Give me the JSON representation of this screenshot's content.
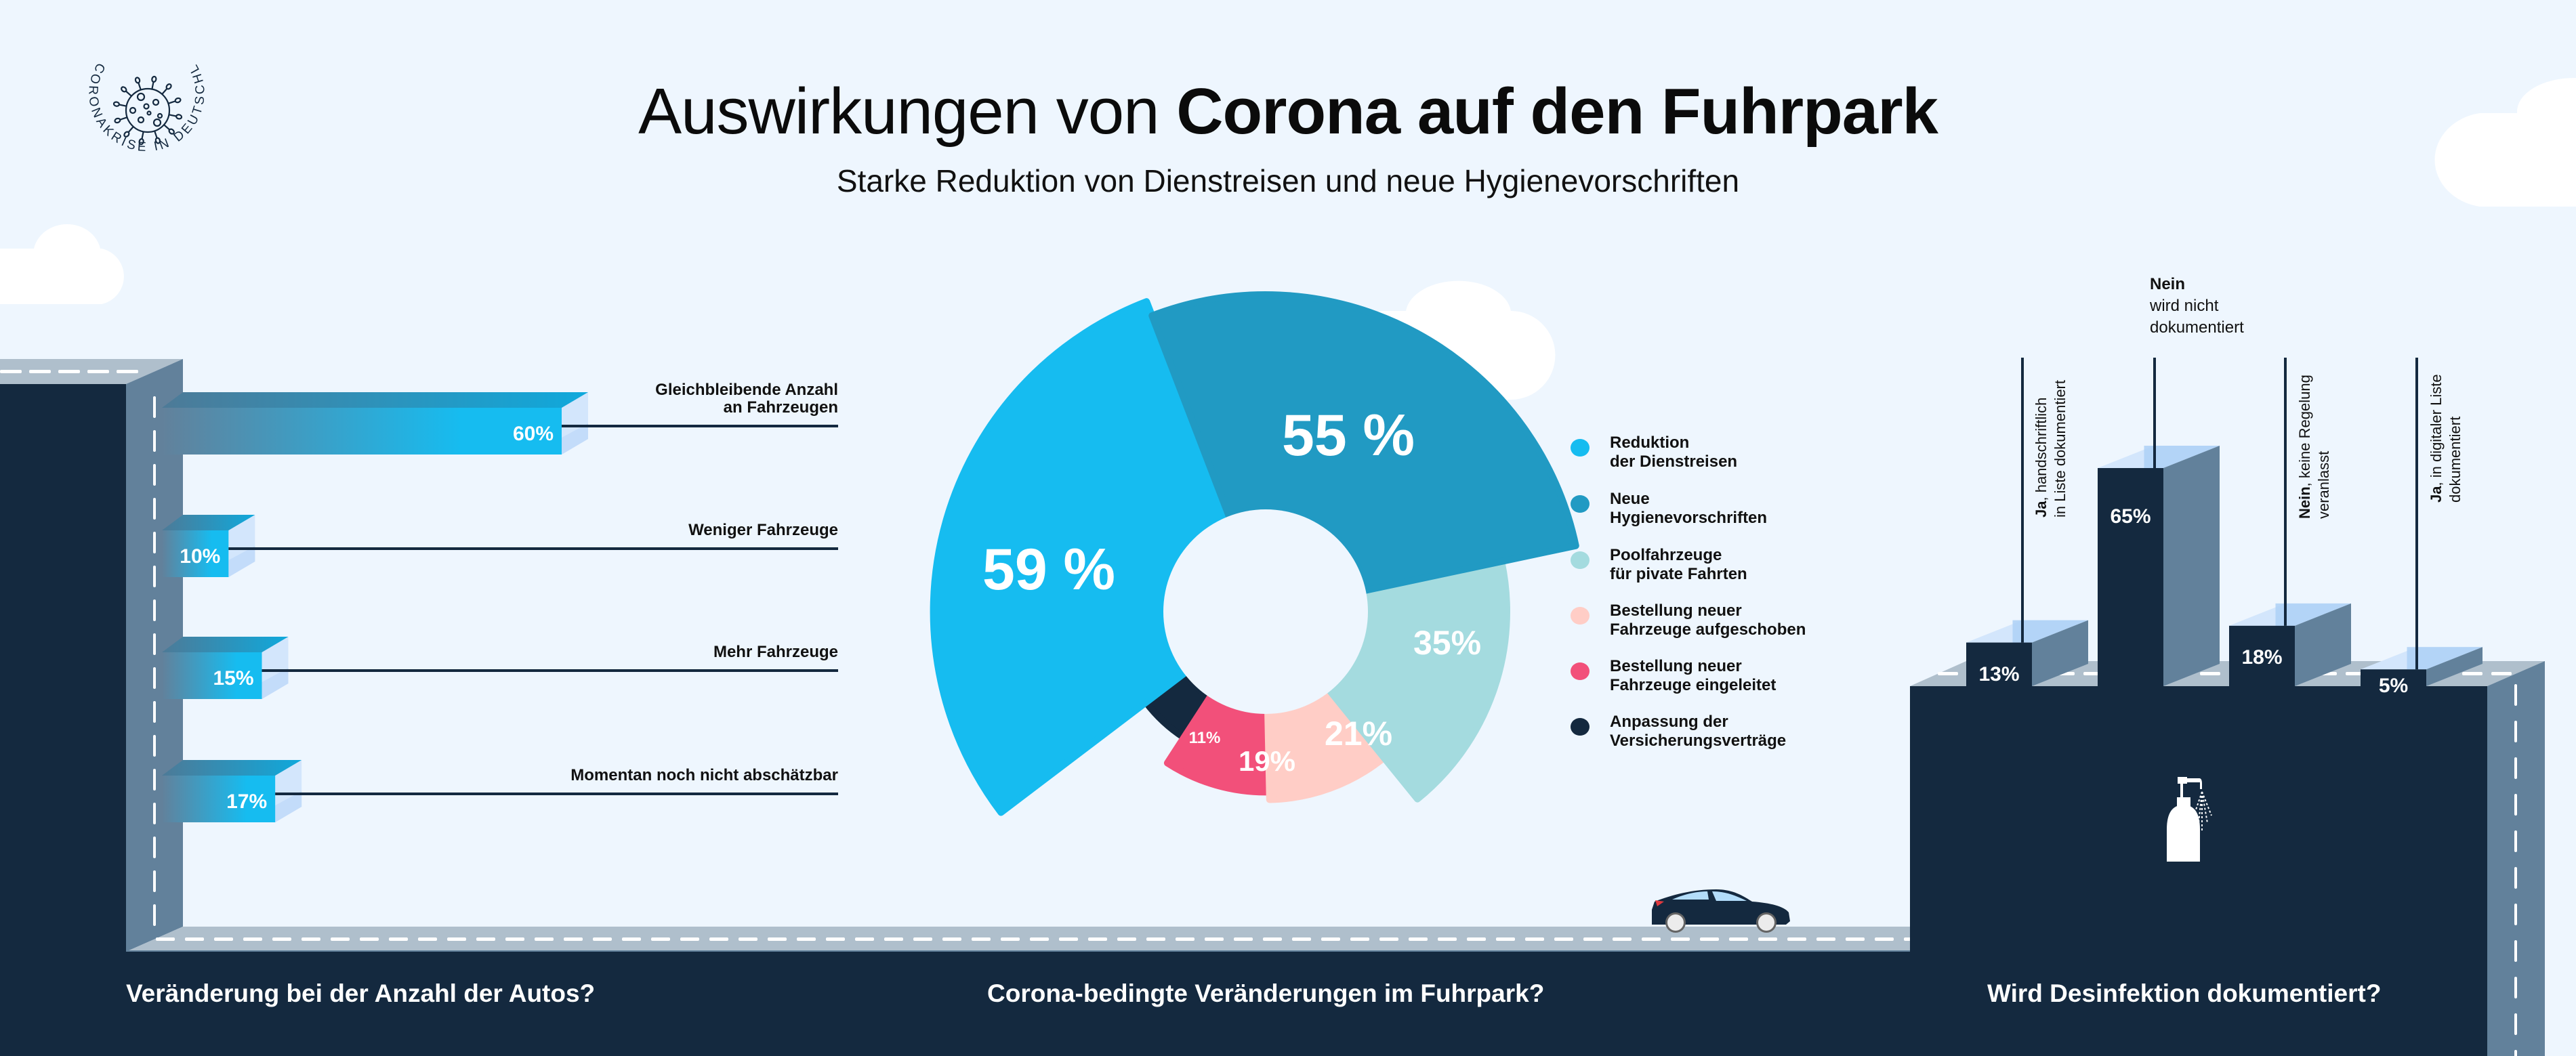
{
  "header": {
    "title_regular": "Auswirkungen von",
    "title_bold": "Corona auf den Fuhrpark",
    "subtitle": "Starke Reduktion von Dienstreisen und neue Hygienevorschriften"
  },
  "logo": {
    "ring_text": "CORONAKRISE IN DEUTSCHLAND",
    "icon": "virus-icon"
  },
  "colors": {
    "background": "#eef6fe",
    "navy": "#14293f",
    "slate": "#62819b",
    "road": "#afbfcc",
    "bar_cyan": "#16bcf0",
    "bar_light": "#d3e6fc",
    "bar_top_light": "#add0f6"
  },
  "sections": {
    "left_caption": "Veränderung bei der Anzahl der Autos?",
    "center_caption": "Corona-bedingte Veränderungen im Fuhrpark?",
    "right_caption": "Wird Desinfektion dokumentiert?"
  },
  "icons": {
    "car": "car-icon",
    "sanitizer": "spray-bottle-icon",
    "clouds": "cloud-icon"
  },
  "chart_data": [
    {
      "type": "bar",
      "orientation": "horizontal",
      "title": "Veränderung bei der Anzahl der Autos?",
      "categories": [
        "Gleichbleibende Anzahl an Fahrzeugen",
        "Weniger Fahrzeuge",
        "Mehr Fahrzeuge",
        "Momentan noch nicht abschätzbar"
      ],
      "category_lines": [
        [
          "Gleichbleibende Anzahl",
          "an Fahrzeugen"
        ],
        [
          "Weniger Fahrzeuge"
        ],
        [
          "Mehr Fahrzeuge"
        ],
        [
          "Momentan noch nicht abschätzbar"
        ]
      ],
      "values": [
        60,
        10,
        15,
        17
      ],
      "value_labels": [
        "60%",
        "10%",
        "15%",
        "17%"
      ],
      "unit": "%",
      "xlim": [
        0,
        60
      ],
      "grid": false,
      "legend": "none"
    },
    {
      "type": "pie",
      "variant": "variable-radius donut",
      "title": "Corona-bedingte Veränderungen im Fuhrpark?",
      "categories": [
        "Reduktion der Dienstreisen",
        "Neue Hygienevorschriften",
        "Poolfahrzeuge für pivate Fahrten",
        "Bestellung neuer Fahrzeuge aufgeschoben",
        "Bestellung neuer Fahrzeuge eingeleitet",
        "Anpassung der Versicherungsverträge"
      ],
      "legend_lines": [
        [
          "Reduktion",
          "der Dienstreisen"
        ],
        [
          "Neue",
          "Hygienevorschriften"
        ],
        [
          "Poolfahrzeuge",
          "für pivate Fahrten"
        ],
        [
          "Bestellung neuer",
          "Fahrzeuge aufgeschoben"
        ],
        [
          "Bestellung neuer",
          "Fahrzeuge eingeleitet"
        ],
        [
          "Anpassung der",
          "Versicherungsverträge"
        ]
      ],
      "values": [
        59,
        55,
        35,
        21,
        19,
        11
      ],
      "value_labels": [
        "59 %",
        "55 %",
        "35%",
        "21%",
        "19%",
        "11%"
      ],
      "colors": [
        "#16bcf0",
        "#219ac3",
        "#a4dbdf",
        "#ffcdc6",
        "#f2507a",
        "#14293f"
      ],
      "unit": "%",
      "legend": "right"
    },
    {
      "type": "bar",
      "orientation": "vertical",
      "title": "Wird Desinfektion dokumentiert?",
      "categories": [
        "Ja, handschriftlich in Liste dokumentiert",
        "Nein wird nicht dokumentiert",
        "Nein, keine Regelung veranlasst",
        "Ja, in digitaler Liste dokumentiert"
      ],
      "category_parts": [
        {
          "bold": "Ja",
          "rest": ", handschriftlich",
          "line2": "in Liste dokumentiert"
        },
        {
          "bold": "Nein",
          "rest": "",
          "line2": "wird nicht",
          "line3": "dokumentiert"
        },
        {
          "bold": "Nein",
          "rest": ", keine Regelung",
          "line2": "veranlasst"
        },
        {
          "bold": "Ja",
          "rest": ", in digitaler Liste",
          "line2": "dokumentiert"
        }
      ],
      "values": [
        13,
        65,
        18,
        5
      ],
      "value_labels": [
        "13%",
        "65%",
        "18%",
        "5%"
      ],
      "unit": "%",
      "ylim": [
        0,
        65
      ],
      "grid": false,
      "legend": "none"
    }
  ]
}
